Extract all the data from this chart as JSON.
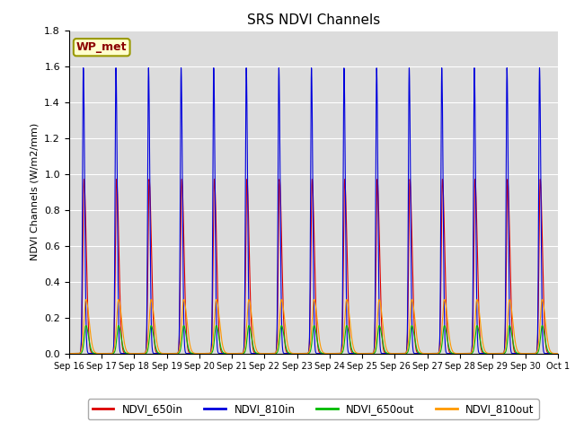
{
  "title": "SRS NDVI Channels",
  "ylabel": "NDVI Channels (W/m2/mm)",
  "legend_label": "WP_met",
  "ylim": [
    0,
    1.8
  ],
  "series_colors": {
    "NDVI_650in": "#dd0000",
    "NDVI_810in": "#0000dd",
    "NDVI_650out": "#00bb00",
    "NDVI_810out": "#ff9900"
  },
  "n_days": 15,
  "start_day": 16,
  "axis_bg_color": "#dcdcdc",
  "title_fontsize": 11,
  "yticks": [
    0.0,
    0.2,
    0.4,
    0.6,
    0.8,
    1.0,
    1.2,
    1.4,
    1.6,
    1.8
  ]
}
